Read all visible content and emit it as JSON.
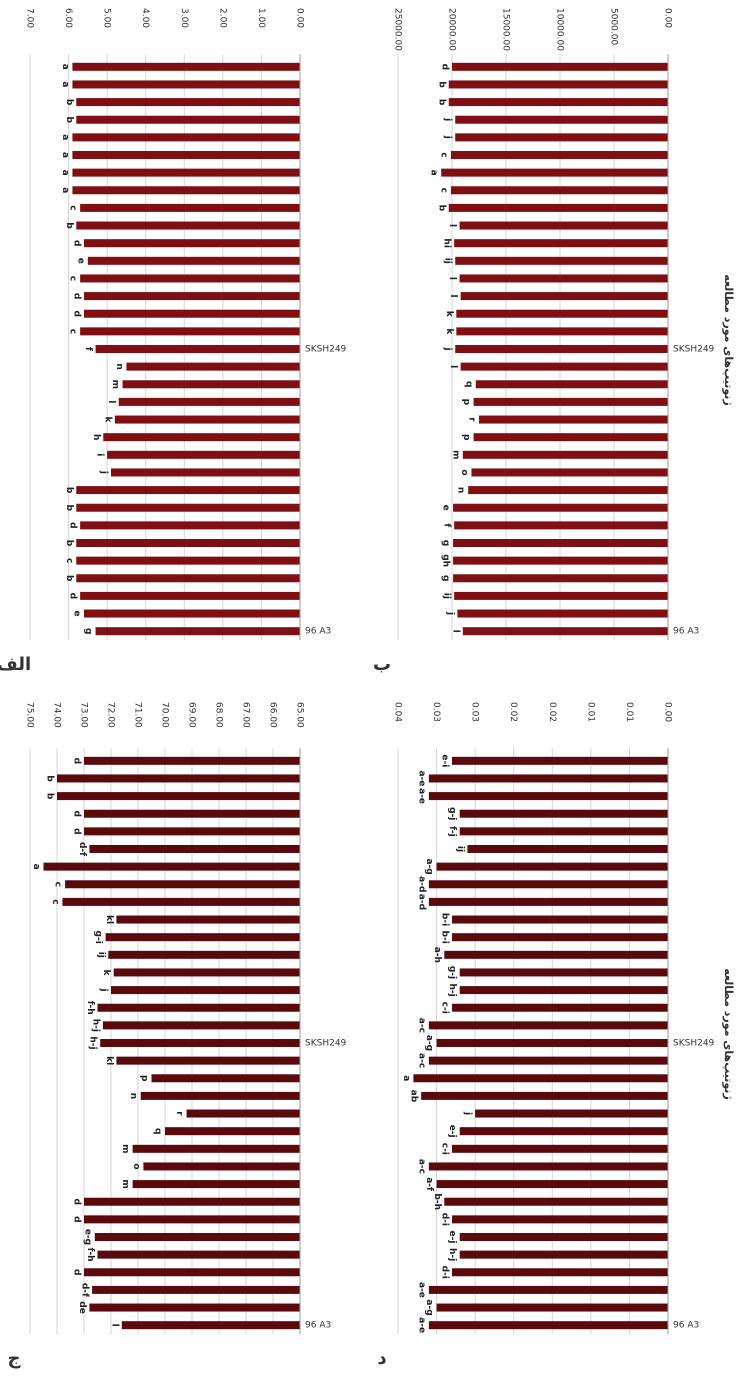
{
  "chart_data": [
    {
      "type": "bar",
      "panel_label": "الف",
      "color": "#7f0f12",
      "categories": [
        "96 A3",
        null,
        null,
        null,
        null,
        null,
        null,
        null,
        null,
        null,
        null,
        null,
        null,
        null,
        null,
        null,
        "SKSH249",
        null,
        null,
        null,
        null,
        null,
        null,
        null,
        null,
        null,
        null,
        null,
        null,
        null,
        null,
        null,
        null
      ],
      "values": [
        5.3,
        5.6,
        5.7,
        5.8,
        5.8,
        5.8,
        5.7,
        5.8,
        5.8,
        4.9,
        5.0,
        5.1,
        4.8,
        4.7,
        4.6,
        4.5,
        5.3,
        5.7,
        5.6,
        5.6,
        5.7,
        5.5,
        5.6,
        5.8,
        5.7,
        5.9,
        5.9,
        5.9,
        5.9,
        5.8,
        5.8,
        5.9,
        5.9
      ],
      "letters": [
        "g",
        "e",
        "d",
        "b",
        "c",
        "b",
        "d",
        "b",
        "b",
        "j",
        "i",
        "h",
        "k",
        "l",
        "m",
        "n",
        "f",
        "c",
        "d",
        "d",
        "c",
        "e",
        "d",
        "b",
        "c",
        "a",
        "a",
        "a",
        "a",
        "b",
        "b",
        "a",
        "a"
      ],
      "ylim": [
        0,
        7
      ],
      "yticks": [
        {
          "value": 0,
          "label": "0.00"
        },
        {
          "value": 1,
          "label": "1.00"
        },
        {
          "value": 2,
          "label": "2.00"
        },
        {
          "value": 3,
          "label": "3.00"
        },
        {
          "value": 4,
          "label": "4.00"
        },
        {
          "value": 5,
          "label": "5.00"
        },
        {
          "value": 6,
          "label": "6.00"
        },
        {
          "value": 7,
          "label": "7.00"
        }
      ],
      "grid": true
    },
    {
      "type": "bar",
      "panel_label": "ب",
      "color": "#7f0f12",
      "x_label": "ژنوتیپ‌های مورد مطالعه",
      "categories": [
        "96 A3",
        null,
        null,
        null,
        null,
        null,
        null,
        null,
        null,
        null,
        null,
        null,
        null,
        null,
        null,
        null,
        "SKSH249",
        null,
        null,
        null,
        null,
        null,
        null,
        null,
        null,
        null,
        null,
        null,
        null,
        null,
        null,
        null,
        null
      ],
      "values": [
        19000,
        19500,
        19800,
        19900,
        19900,
        19900,
        19800,
        19900,
        18500,
        18200,
        19000,
        18000,
        17500,
        18000,
        17800,
        19200,
        19700,
        19600,
        19600,
        19200,
        19300,
        19700,
        19800,
        19300,
        20300,
        20100,
        21000,
        20100,
        19700,
        19700,
        20300,
        20300,
        20000
      ],
      "letters": [
        "l",
        "j",
        "ij",
        "g",
        "gh",
        "g",
        "f",
        "e",
        "n",
        "o",
        "m",
        "p",
        "r",
        "p",
        "q",
        "l",
        "j",
        "k",
        "k",
        "l",
        "l",
        "ij",
        "hi",
        "l",
        "b",
        "c",
        "a",
        "c",
        "j",
        "j",
        "b",
        "b",
        "d"
      ],
      "ylim": [
        0,
        25000
      ],
      "yticks": [
        {
          "value": 0,
          "label": "0.00"
        },
        {
          "value": 5000,
          "label": "5000.00"
        },
        {
          "value": 10000,
          "label": "10000.00"
        },
        {
          "value": 15000,
          "label": "15000.00"
        },
        {
          "value": 20000,
          "label": "20000.00"
        },
        {
          "value": 25000,
          "label": "25000.00"
        }
      ],
      "grid": true
    },
    {
      "type": "bar",
      "panel_label": "ج",
      "color": "#5a0a0c",
      "categories": [
        "96 A3",
        null,
        null,
        null,
        null,
        null,
        null,
        null,
        null,
        null,
        null,
        null,
        null,
        null,
        null,
        null,
        "SKSH249",
        null,
        null,
        null,
        null,
        null,
        null,
        null,
        null,
        null,
        null,
        null,
        null,
        null,
        null,
        null,
        null
      ],
      "values": [
        71.6,
        72.8,
        72.7,
        73.0,
        72.5,
        72.6,
        73.0,
        73.0,
        71.2,
        70.8,
        71.2,
        70.0,
        69.2,
        70.9,
        70.5,
        71.8,
        72.4,
        72.3,
        72.5,
        72.0,
        71.9,
        72.1,
        72.2,
        71.8,
        73.8,
        73.7,
        74.5,
        72.8,
        73.0,
        73.0,
        74.0,
        74.0,
        73.0
      ],
      "letters": [
        "l",
        "de",
        "d-f",
        "d",
        "f-h",
        "e-g",
        "d",
        "d",
        "m",
        "o",
        "m",
        "q",
        "r",
        "n",
        "p",
        "kl",
        "h-j",
        "h-j",
        "f-h",
        "j",
        "k",
        "ij",
        "g-i",
        "kl",
        "c",
        "c",
        "a",
        "d-f",
        "d",
        "d",
        "b",
        "b",
        "d"
      ],
      "ylim": [
        65,
        75
      ],
      "yticks": [
        {
          "value": 65,
          "label": "65.00"
        },
        {
          "value": 66,
          "label": "66.00"
        },
        {
          "value": 67,
          "label": "67.00"
        },
        {
          "value": 68,
          "label": "68.00"
        },
        {
          "value": 69,
          "label": "69.00"
        },
        {
          "value": 70,
          "label": "70.00"
        },
        {
          "value": 71,
          "label": "71.00"
        },
        {
          "value": 72,
          "label": "72.00"
        },
        {
          "value": 73,
          "label": "73.00"
        },
        {
          "value": 74,
          "label": "74.00"
        },
        {
          "value": 75,
          "label": "75.00"
        }
      ],
      "grid": true
    },
    {
      "type": "bar",
      "panel_label": "د",
      "color": "#5a0a0c",
      "x_label": "ژنوتیپ‌های مورد مطالعه",
      "categories": [
        "96 A3",
        null,
        null,
        null,
        null,
        null,
        null,
        null,
        null,
        null,
        null,
        null,
        null,
        null,
        null,
        null,
        "SKSH249",
        null,
        null,
        null,
        null,
        null,
        null,
        null,
        null,
        null,
        null,
        null,
        null,
        null,
        null,
        null,
        null
      ],
      "values": [
        0.031,
        0.03,
        0.031,
        0.028,
        0.027,
        0.027,
        0.028,
        0.029,
        0.03,
        0.031,
        0.028,
        0.027,
        0.025,
        0.032,
        0.033,
        0.031,
        0.03,
        0.031,
        0.028,
        0.027,
        0.027,
        0.029,
        0.028,
        0.028,
        0.031,
        0.031,
        0.03,
        0.026,
        0.027,
        0.027,
        0.031,
        0.031,
        0.028
      ],
      "letters": [
        "a-e",
        "a-g",
        "a-e",
        "d-i",
        "h-j",
        "e-j",
        "d-i",
        "b-h",
        "a-f",
        "a-c",
        "c-i",
        "e-j",
        "j",
        "ab",
        "a",
        "a-c",
        "a-g",
        "a-c",
        "c-i",
        "h-j",
        "g-j",
        "a-h",
        "b-i",
        "b-i",
        "a-d",
        "a-d",
        "a-g",
        "ij",
        "f-j",
        "g-j",
        "a-e",
        "a-e",
        "e-i"
      ],
      "ylim": [
        0,
        0.035
      ],
      "yticks": [
        {
          "value": 0,
          "label": "0.00"
        },
        {
          "value": 0.005,
          "label": "0.01"
        },
        {
          "value": 0.01,
          "label": "0.01"
        },
        {
          "value": 0.015,
          "label": "0.02"
        },
        {
          "value": 0.02,
          "label": "0.02"
        },
        {
          "value": 0.025,
          "label": "0.03"
        },
        {
          "value": 0.03,
          "label": "0.03"
        },
        {
          "value": 0.035,
          "label": "0.04"
        }
      ],
      "grid": true
    }
  ]
}
